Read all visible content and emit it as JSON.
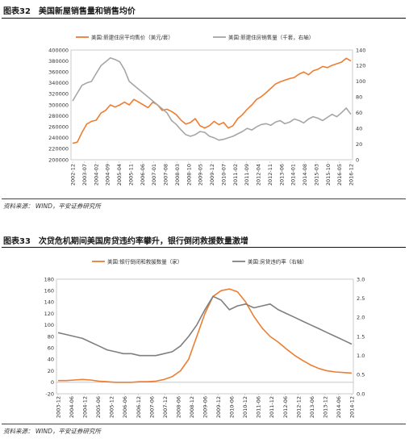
{
  "chart_data": [
    {
      "type": "line",
      "figure_label": "图表32",
      "title": "美国新屋销售量和销售均价",
      "source": "资料来源： WIND，平安证券研究所",
      "x_labels": [
        "2002-12",
        "2003-07",
        "2004-02",
        "2004-09",
        "2005-04",
        "2005-11",
        "2006-06",
        "2007-01",
        "2007-08",
        "2008-03",
        "2008-10",
        "2009-05",
        "2009-12",
        "2010-07",
        "2011-02",
        "2011-09",
        "2012-04",
        "2012-11",
        "2013-06",
        "2014-01",
        "2014-08",
        "2015-03",
        "2015-10",
        "2016-05",
        "2016-12"
      ],
      "legend_position": "top",
      "y_left": {
        "min": 200000,
        "max": 400000,
        "step": 20000,
        "ticks": [
          "200000",
          "220000",
          "240000",
          "260000",
          "280000",
          "300000",
          "320000",
          "340000",
          "360000",
          "380000",
          "400000"
        ]
      },
      "y_right": {
        "min": 0,
        "max": 140,
        "step": 20,
        "ticks": [
          "0",
          "20",
          "40",
          "60",
          "80",
          "100",
          "120",
          "140"
        ]
      },
      "series": [
        {
          "name": "美国:新建住房平均售价（美元/套）",
          "axis": "left",
          "color": "#ED7D31",
          "values": [
            230000,
            232000,
            250000,
            265000,
            270000,
            272000,
            285000,
            290000,
            300000,
            296000,
            300000,
            305000,
            300000,
            310000,
            305000,
            300000,
            295000,
            305000,
            300000,
            290000,
            292000,
            288000,
            282000,
            272000,
            265000,
            268000,
            275000,
            262000,
            258000,
            262000,
            270000,
            264000,
            268000,
            258000,
            262000,
            275000,
            282000,
            292000,
            300000,
            310000,
            315000,
            322000,
            330000,
            338000,
            342000,
            345000,
            348000,
            350000,
            356000,
            360000,
            355000,
            362000,
            365000,
            370000,
            368000,
            372000,
            375000,
            378000,
            385000,
            380000
          ]
        },
        {
          "name": "美国:新建住房销售量（千套，右轴）",
          "axis": "right",
          "color": "#A6A6A6",
          "values": [
            75,
            85,
            95,
            98,
            100,
            110,
            120,
            125,
            130,
            128,
            125,
            115,
            100,
            95,
            90,
            85,
            80,
            75,
            70,
            65,
            60,
            50,
            45,
            38,
            32,
            30,
            32,
            36,
            35,
            30,
            28,
            25,
            26,
            28,
            30,
            33,
            36,
            40,
            38,
            42,
            45,
            46,
            44,
            48,
            50,
            46,
            48,
            52,
            50,
            47,
            52,
            55,
            53,
            50,
            54,
            58,
            55,
            60,
            66,
            58
          ]
        }
      ]
    },
    {
      "type": "line",
      "figure_label": "图表33",
      "title": "次贷危机期间美国房贷违约率攀升，银行倒闭救援数量激增",
      "source": "资料来源： WIND，平安证券研究所",
      "x_labels": [
        "2003-12",
        "2004-06",
        "2004-12",
        "2005-06",
        "2005-12",
        "2006-06",
        "2006-12",
        "2007-06",
        "2007-12",
        "2008-06",
        "2008-12",
        "2009-06",
        "2009-12",
        "2010-06",
        "2010-12",
        "2011-06",
        "2011-12",
        "2012-06",
        "2012-12",
        "2013-06",
        "2013-12",
        "2014-06",
        "2014-12"
      ],
      "legend_position": "top",
      "y_left": {
        "min": -20,
        "max": 180,
        "step": 20,
        "ticks": [
          "-20",
          "0",
          "20",
          "40",
          "60",
          "80",
          "100",
          "120",
          "140",
          "160",
          "180"
        ]
      },
      "y_right": {
        "min": 0.0,
        "max": 3.0,
        "step": 0.5,
        "ticks": [
          "0.0",
          "0.5",
          "1.0",
          "1.5",
          "2.0",
          "2.5",
          "3.0"
        ]
      },
      "series": [
        {
          "name": "美国:银行倒闭和救援数量（家）",
          "axis": "left",
          "color": "#ED7D31",
          "values": [
            3,
            3,
            4,
            5,
            4,
            2,
            1,
            0,
            0,
            0,
            1,
            1,
            2,
            5,
            10,
            20,
            40,
            80,
            120,
            150,
            160,
            163,
            158,
            140,
            115,
            95,
            80,
            70,
            58,
            47,
            38,
            30,
            24,
            20,
            18,
            17,
            16
          ]
        },
        {
          "name": "美国:房贷违约率（右轴）",
          "axis": "right",
          "color": "#7F7F7F",
          "values": [
            1.6,
            1.55,
            1.5,
            1.45,
            1.35,
            1.25,
            1.15,
            1.1,
            1.05,
            1.05,
            1.0,
            1.0,
            1.0,
            1.05,
            1.1,
            1.25,
            1.5,
            1.8,
            2.2,
            2.55,
            2.45,
            2.2,
            2.3,
            2.35,
            2.25,
            2.3,
            2.35,
            2.2,
            2.1,
            2.0,
            1.9,
            1.8,
            1.7,
            1.6,
            1.5,
            1.4,
            1.3
          ]
        }
      ]
    }
  ]
}
